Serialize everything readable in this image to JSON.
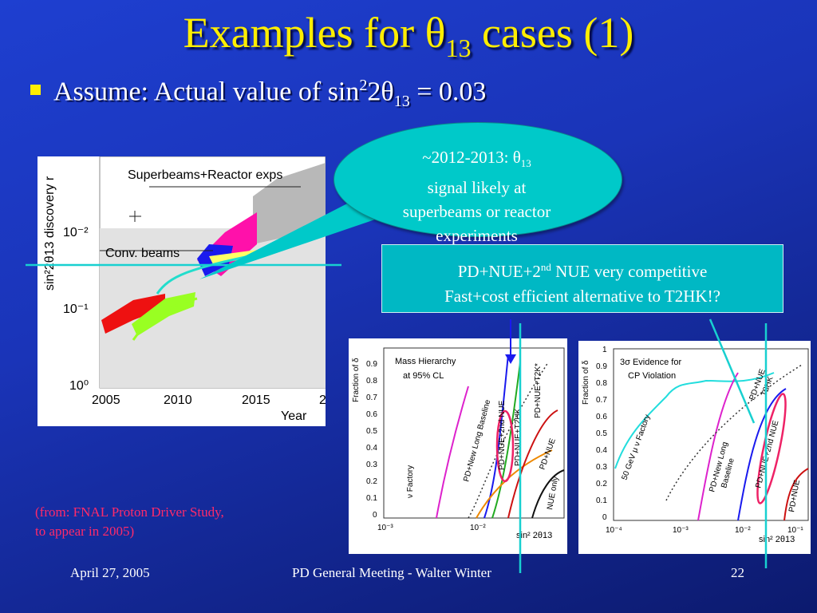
{
  "slide": {
    "title_prefix": "Examples for θ",
    "title_sub": "13",
    "title_suffix": " cases (1)",
    "bullet_prefix": "Assume: Actual value of sin",
    "bullet_sup": "2",
    "bullet_mid": "2θ",
    "bullet_sub": "13",
    "bullet_suffix": " = 0.03"
  },
  "callout": {
    "line1_prefix": "~2012-2013: θ",
    "line1_sub": "13",
    "line2": "signal likely at",
    "line3": "superbeams or reactor",
    "line4": "experiments"
  },
  "box": {
    "line1_prefix": "PD+NUE+2",
    "line1_sup": "nd",
    "line1_suffix": " NUE very competitive",
    "line2": "Fast+cost efficient alternative to T2HK!?"
  },
  "note": {
    "line1": "(from: FNAL Proton Driver Study,",
    "line2": "to appear in 2005)"
  },
  "footer": {
    "date": "April 27, 2005",
    "center": "PD General Meeting - Walter Winter",
    "page": "22"
  },
  "left_chart": {
    "ylabel": "sin²2θ13 discovery r",
    "yticks": [
      "10⁻²",
      "10⁻¹",
      "10⁰"
    ],
    "xticks": [
      "2005",
      "2010",
      "2015",
      "2"
    ],
    "xlabel": "Year",
    "label_superbeams": "Superbeams+Reactor exps",
    "label_conv": "Conv. beams"
  },
  "mid_chart": {
    "ylabel": "Fraction of δ",
    "yticks": [
      "0.9",
      "0.8",
      "0.7",
      "0.6",
      "0.5",
      "0.4",
      "0.3",
      "0.2",
      "0.1",
      "0"
    ],
    "xticks": [
      "10⁻³",
      "10⁻²"
    ],
    "xlabel": "sin² 2θ13",
    "legend1": "Mass Hierarchy",
    "legend2": "at 95% CL",
    "curves": [
      "ν Factory",
      "PD+New Long Baseline",
      "PD+NUE+2nd NUE",
      "PD+NUE+T2HK",
      "PD+NUE+T2K*",
      "PD+NUE",
      "NUE only"
    ]
  },
  "right_chart": {
    "ylabel": "Fraction of δ",
    "yticks": [
      "1",
      "0.9",
      "0.8",
      "0.7",
      "0.6",
      "0.5",
      "0.4",
      "0.3",
      "0.2",
      "0.1",
      "0"
    ],
    "xticks": [
      "10⁻⁴",
      "10⁻³",
      "10⁻²",
      "10⁻¹"
    ],
    "xlabel": "sin² 2θ13",
    "legend1": "3σ Evidence for",
    "legend2": "CP Violation",
    "curves": [
      "50 GeV μ ν Factory",
      "PD+New Long",
      "Baseline",
      "PD+NUE",
      "T2HK",
      "PD+NUE+2nd NUE",
      "PD+NUE"
    ]
  },
  "colors": {
    "title": "#ffee00",
    "callout": "#00c9c9",
    "box": "#00b8c4",
    "note": "#ff2a6a",
    "cyan_line": "#18d0d0"
  }
}
